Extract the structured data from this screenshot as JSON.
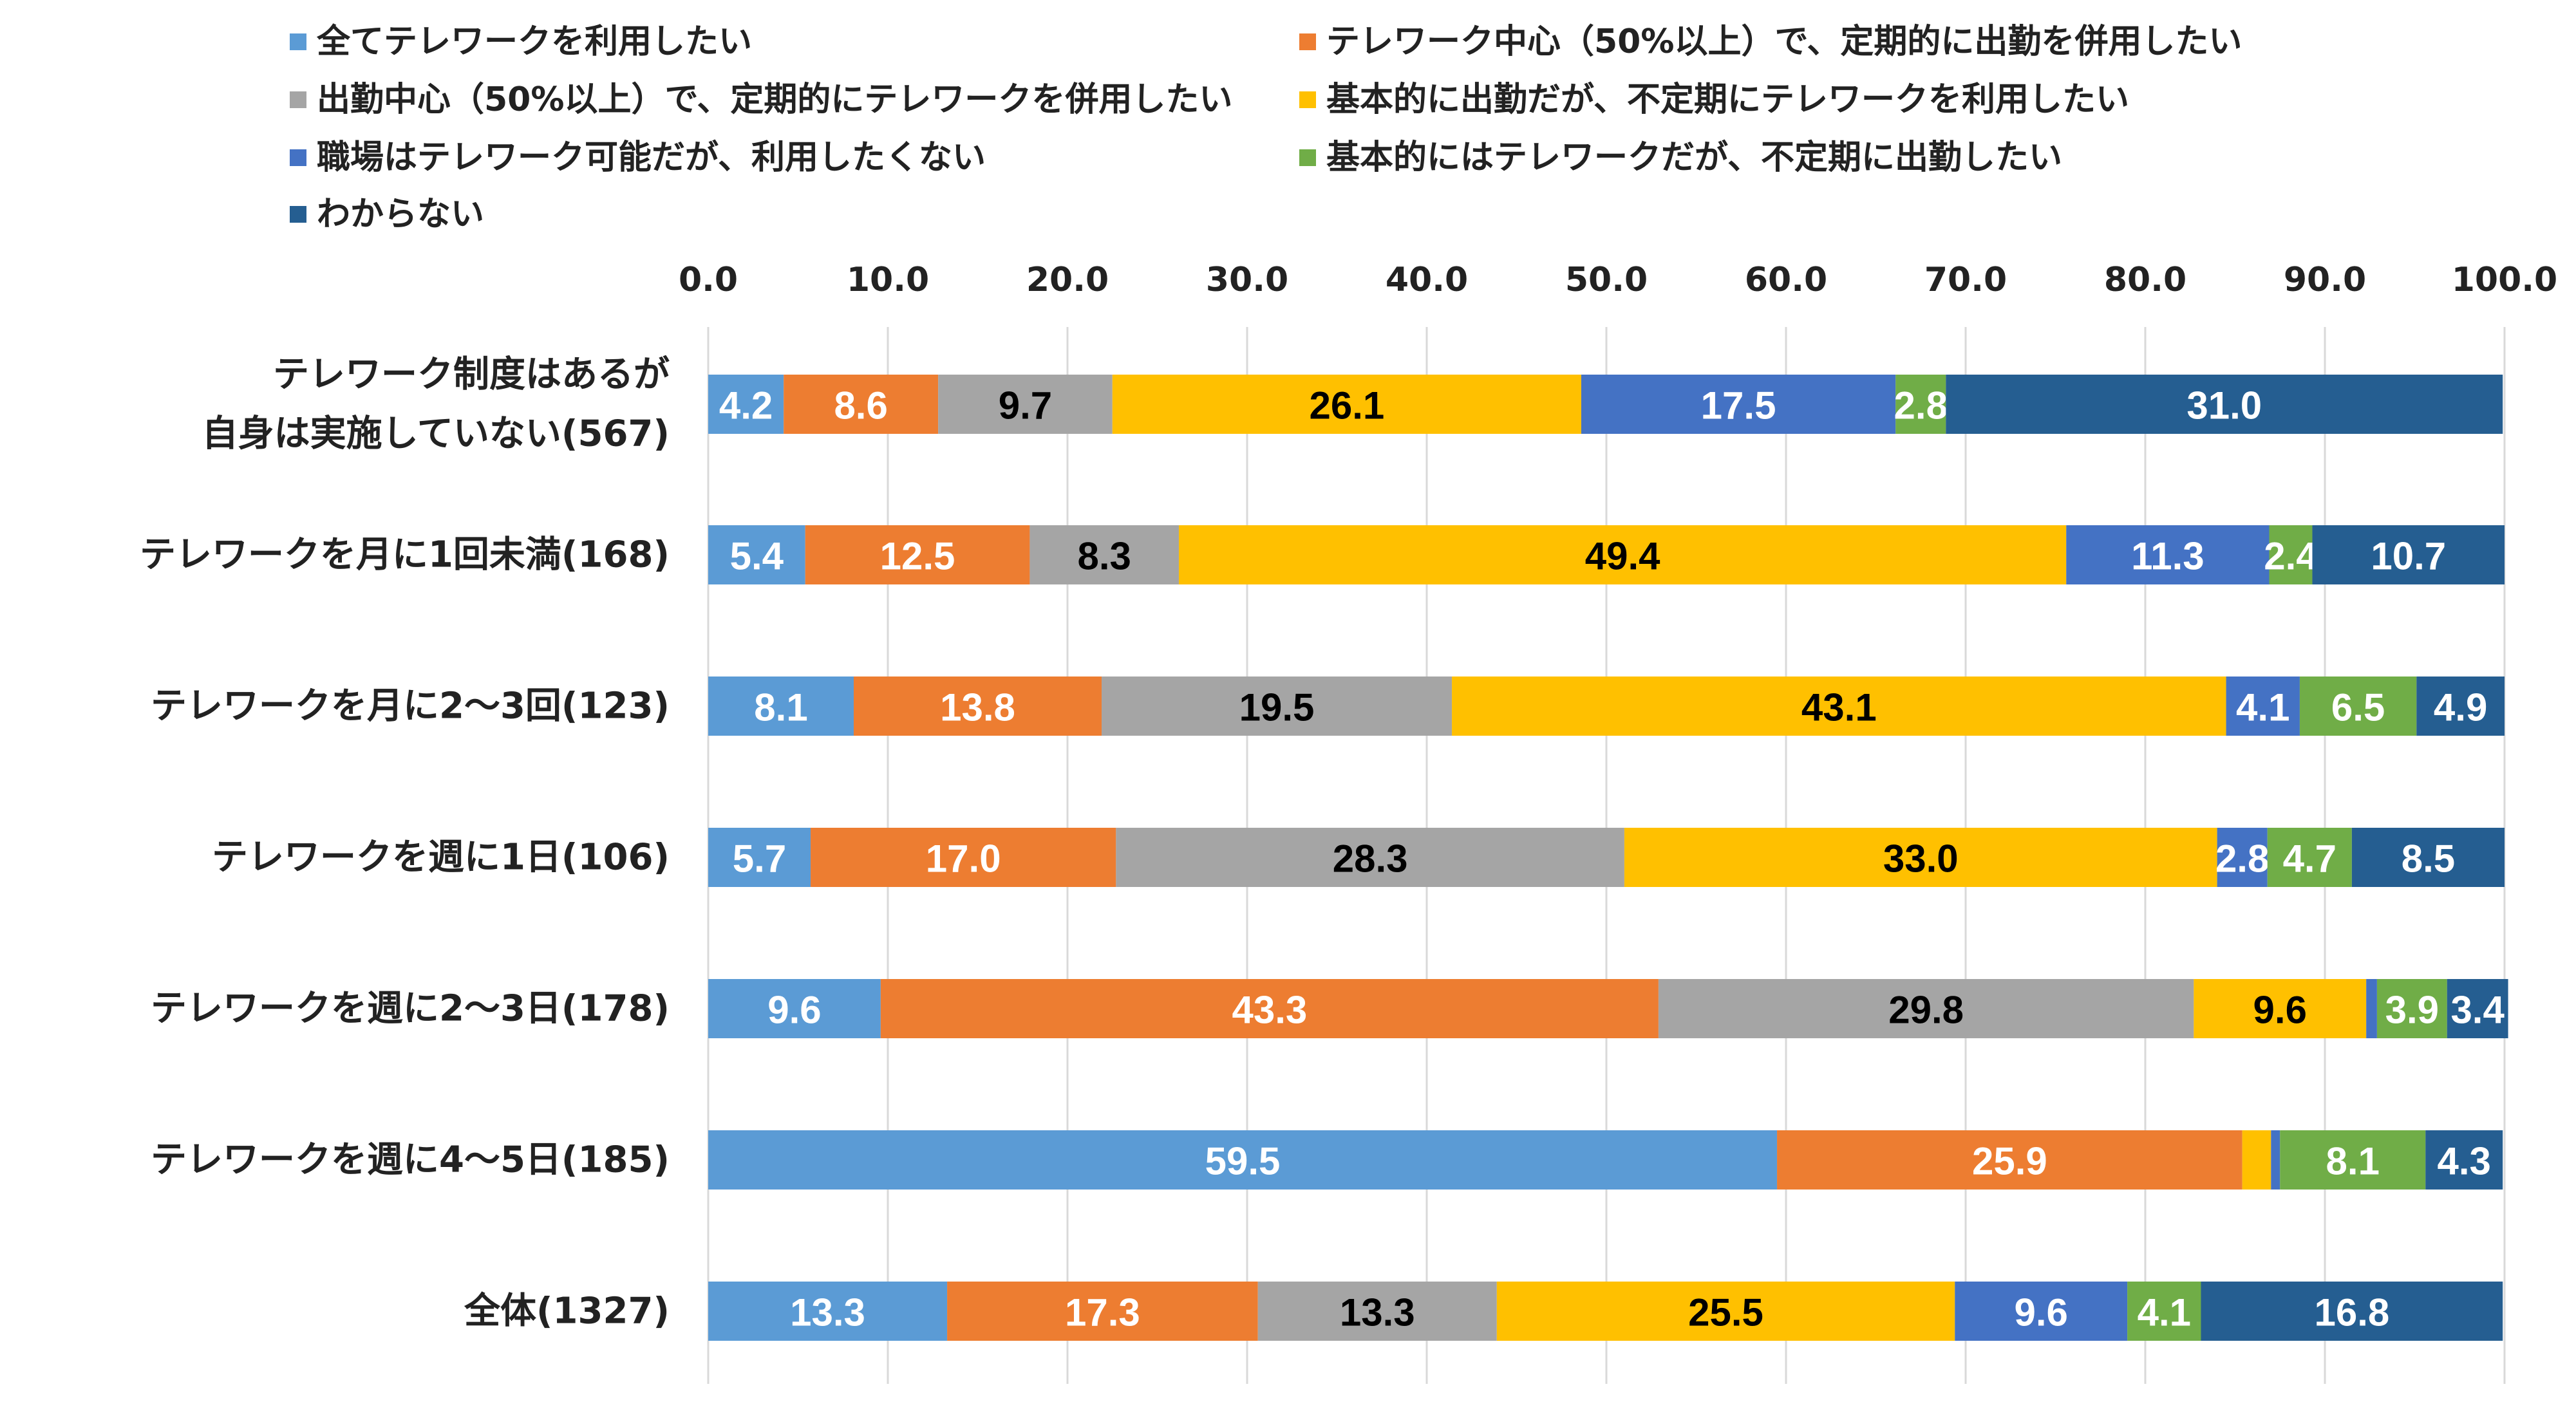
{
  "chart_data": {
    "type": "bar",
    "orientation": "horizontal",
    "stacked": true,
    "xlim": [
      0,
      100
    ],
    "x_ticks": [
      "0.0",
      "10.0",
      "20.0",
      "30.0",
      "40.0",
      "50.0",
      "60.0",
      "70.0",
      "80.0",
      "90.0",
      "100.0"
    ],
    "grid": true,
    "legend_position": "top",
    "categories": [
      [
        "テレワーク制度はあるが",
        "自身は実施していない(567)"
      ],
      [
        "テレワークを月に1回未満(168)"
      ],
      [
        "テレワークを月に2～3回(123)"
      ],
      [
        "テレワークを週に1日(106)"
      ],
      [
        "テレワークを週に2～3日(178)"
      ],
      [
        "テレワークを週に4～5日(185)"
      ],
      [
        "全体(1327)"
      ]
    ],
    "series": [
      {
        "name": "全てテレワークを利用したい",
        "color": "#5B9BD5",
        "label_color": "#ffffff",
        "values": [
          4.2,
          5.4,
          8.1,
          5.7,
          9.6,
          59.5,
          13.3
        ]
      },
      {
        "name": "テレワーク中心（50%以上）で、定期的に出勤を併用したい",
        "color": "#ED7D31",
        "label_color": "#ffffff",
        "values": [
          8.6,
          12.5,
          13.8,
          17.0,
          43.3,
          25.9,
          17.3
        ]
      },
      {
        "name": "出勤中心（50%以上）で、定期的にテレワークを併用したい",
        "color": "#A5A5A5",
        "label_color": "#000000",
        "values": [
          9.7,
          8.3,
          19.5,
          28.3,
          29.8,
          0.0,
          13.3
        ]
      },
      {
        "name": "基本的に出勤だが、不定期にテレワークを利用したい",
        "color": "#FFC000",
        "label_color": "#000000",
        "values": [
          26.1,
          49.4,
          43.1,
          33.0,
          9.6,
          1.6,
          25.5
        ]
      },
      {
        "name": "職場はテレワーク可能だが、利用したくない",
        "color": "#4472C4",
        "label_color": "#ffffff",
        "values": [
          17.5,
          11.3,
          4.1,
          2.8,
          0.6,
          0.5,
          9.6
        ]
      },
      {
        "name": "基本的にはテレワークだが、不定期に出勤したい",
        "color": "#70AD47",
        "label_color": "#ffffff",
        "values": [
          2.8,
          2.4,
          6.5,
          4.7,
          3.9,
          8.1,
          4.1
        ]
      },
      {
        "name": "わからない",
        "color": "#255E91",
        "label_color": "#ffffff",
        "values": [
          31.0,
          10.7,
          4.9,
          8.5,
          3.4,
          4.3,
          16.8
        ]
      }
    ],
    "data_labels": [
      [
        "4.2",
        "8.6",
        "9.7",
        "26.1",
        "17.5",
        "2.8",
        "31.0"
      ],
      [
        "5.4",
        "12.5",
        "8.3",
        "49.4",
        "11.3",
        "2.4",
        "10.7"
      ],
      [
        "8.1",
        "13.8",
        "19.5",
        "43.1",
        "4.1",
        "6.5",
        "4.9"
      ],
      [
        "5.7",
        "17.0",
        "28.3",
        "33.0",
        "2.8",
        "4.7",
        "8.5"
      ],
      [
        "9.6",
        "43.3",
        "29.8",
        "9.6",
        "",
        "3.9",
        "3.4"
      ],
      [
        "59.5",
        "25.9",
        "",
        "",
        "",
        "8.1",
        "4.3"
      ],
      [
        "13.3",
        "17.3",
        "13.3",
        "25.5",
        "9.6",
        "4.1",
        "16.8"
      ]
    ]
  }
}
